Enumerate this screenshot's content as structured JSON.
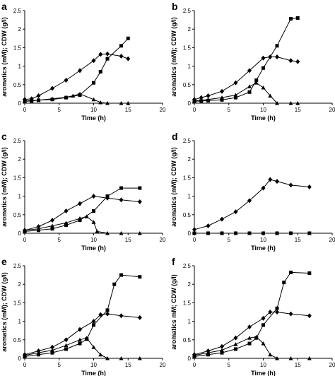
{
  "chart_data": [
    {
      "panel": "a",
      "type": "line",
      "ylabel": "aromatics (mM); CDW (g/l)",
      "xlabel": "Time (h)",
      "xlim": [
        0,
        20
      ],
      "ylim": [
        0,
        2.5
      ],
      "xticks": [
        "0",
        "5",
        "10",
        "15",
        "20"
      ],
      "yticks": [
        "0",
        "0.5",
        "1",
        "1.5",
        "2",
        "2.5"
      ],
      "series": [
        {
          "marker": "diamond",
          "x": [
            0,
            1,
            2,
            4,
            6,
            8,
            10,
            11,
            12,
            14,
            15
          ],
          "y": [
            0.1,
            0.12,
            0.2,
            0.4,
            0.62,
            0.88,
            1.15,
            1.32,
            1.33,
            1.27,
            1.2
          ]
        },
        {
          "marker": "square",
          "x": [
            0,
            1,
            2,
            4,
            6,
            8,
            10,
            11,
            12,
            14,
            15
          ],
          "y": [
            0.05,
            0.06,
            0.08,
            0.1,
            0.15,
            0.22,
            0.55,
            0.85,
            1.2,
            1.55,
            1.75
          ]
        },
        {
          "marker": "triangle",
          "x": [
            0,
            2,
            4,
            6,
            7,
            8,
            10,
            11,
            12,
            14,
            15
          ],
          "y": [
            0.06,
            0.08,
            0.12,
            0.16,
            0.2,
            0.25,
            0.1,
            0.02,
            0.0,
            0.0,
            0.0
          ]
        }
      ]
    },
    {
      "panel": "b",
      "type": "line",
      "ylabel": "aromatics (mM); CDW (g/l)",
      "xlabel": "Time (h)",
      "xlim": [
        0,
        20
      ],
      "ylim": [
        0,
        2.5
      ],
      "xticks": [
        "0",
        "5",
        "10",
        "15",
        "20"
      ],
      "yticks": [
        "0",
        "0.5",
        "1",
        "1.5",
        "2",
        "2.5"
      ],
      "series": [
        {
          "marker": "diamond",
          "x": [
            0,
            1,
            2,
            4,
            6,
            8,
            10,
            11,
            12,
            14,
            15
          ],
          "y": [
            0.1,
            0.15,
            0.2,
            0.32,
            0.55,
            0.88,
            1.22,
            1.25,
            1.25,
            1.15,
            1.12
          ]
        },
        {
          "marker": "square",
          "x": [
            0,
            1,
            2,
            4,
            6,
            8,
            9,
            10,
            12,
            14,
            15
          ],
          "y": [
            0.05,
            0.06,
            0.07,
            0.09,
            0.15,
            0.3,
            0.62,
            0.95,
            1.55,
            2.28,
            2.3
          ]
        },
        {
          "marker": "triangle",
          "x": [
            0,
            2,
            4,
            6,
            8,
            9,
            10,
            11,
            12,
            14,
            15
          ],
          "y": [
            0.06,
            0.1,
            0.15,
            0.22,
            0.45,
            0.55,
            0.42,
            0.2,
            0.0,
            0.0,
            0.0
          ]
        }
      ]
    },
    {
      "panel": "c",
      "type": "line",
      "ylabel": "aromatics (mM); CDW (g/l)",
      "xlabel": "Time (h)",
      "xlim": [
        0,
        20
      ],
      "ylim": [
        0,
        2.5
      ],
      "xticks": [
        "0",
        "5",
        "10",
        "15",
        "20"
      ],
      "yticks": [
        "0",
        "0.5",
        "1",
        "1.5",
        "2",
        "2.5"
      ],
      "series": [
        {
          "marker": "diamond",
          "x": [
            0,
            2,
            4,
            6,
            8,
            10,
            12,
            14,
            16.7
          ],
          "y": [
            0.08,
            0.18,
            0.35,
            0.6,
            0.8,
            1.0,
            0.95,
            0.9,
            0.85
          ]
        },
        {
          "marker": "square",
          "x": [
            0,
            2,
            4,
            6,
            8,
            10,
            12,
            14,
            16.7
          ],
          "y": [
            0.05,
            0.08,
            0.12,
            0.22,
            0.35,
            0.6,
            1.0,
            1.22,
            1.22
          ]
        },
        {
          "marker": "triangle",
          "x": [
            0,
            2,
            4,
            6,
            8,
            9,
            10,
            10.5,
            12,
            14,
            16.7
          ],
          "y": [
            0.08,
            0.12,
            0.2,
            0.28,
            0.4,
            0.45,
            0.3,
            0.05,
            0.0,
            0.0,
            0.0
          ]
        }
      ]
    },
    {
      "panel": "d",
      "type": "line",
      "ylabel": "aromatics (mM); CDW (g/l)",
      "xlabel": "Time (h)",
      "xlim": [
        0,
        20
      ],
      "ylim": [
        0,
        2.5
      ],
      "xticks": [
        "0",
        "5",
        "10",
        "15",
        "20"
      ],
      "yticks": [
        "0",
        "0.5",
        "1",
        "1.5",
        "2",
        "2.5"
      ],
      "series": [
        {
          "marker": "diamond",
          "x": [
            0,
            2,
            4,
            6,
            8,
            10,
            11,
            12,
            14,
            16.7
          ],
          "y": [
            0.1,
            0.2,
            0.38,
            0.58,
            0.88,
            1.22,
            1.45,
            1.4,
            1.3,
            1.25
          ]
        },
        {
          "marker": "square",
          "x": [
            0,
            2,
            4,
            6,
            8,
            10,
            12,
            14,
            16.7
          ],
          "y": [
            0.0,
            0.0,
            0.0,
            0.0,
            0.0,
            0.0,
            0.0,
            0.0,
            0.0
          ]
        },
        {
          "marker": "triangle",
          "x": [
            0,
            2,
            4,
            6,
            8,
            10,
            12,
            14,
            16.7
          ],
          "y": [
            0.0,
            0.0,
            0.0,
            0.0,
            0.0,
            0.0,
            0.0,
            0.0,
            0.0
          ]
        }
      ]
    },
    {
      "panel": "e",
      "type": "line",
      "ylabel": "aromatics (mM); CDW (g/l)",
      "xlabel": "Time (h)",
      "xlim": [
        0,
        20
      ],
      "ylim": [
        0,
        2.5
      ],
      "xticks": [
        "0",
        "5",
        "10",
        "15",
        "20"
      ],
      "yticks": [
        "0",
        "0.5",
        "1",
        "1.5",
        "2",
        "2.5"
      ],
      "series": [
        {
          "marker": "diamond",
          "x": [
            0,
            2,
            4,
            6,
            8,
            10,
            11,
            12,
            14,
            16.7
          ],
          "y": [
            0.1,
            0.2,
            0.3,
            0.5,
            0.78,
            1.0,
            1.18,
            1.2,
            1.15,
            1.1
          ]
        },
        {
          "marker": "square",
          "x": [
            0,
            2,
            4,
            6,
            8,
            9,
            10,
            12,
            13,
            14,
            16.7
          ],
          "y": [
            0.05,
            0.1,
            0.15,
            0.25,
            0.4,
            0.52,
            0.9,
            1.3,
            2.0,
            2.25,
            2.2
          ]
        },
        {
          "marker": "triangle",
          "x": [
            0,
            2,
            4,
            6,
            8,
            9,
            10,
            11,
            12,
            14,
            16.7
          ],
          "y": [
            0.08,
            0.15,
            0.22,
            0.35,
            0.5,
            0.55,
            0.3,
            0.1,
            0.0,
            0.0,
            0.0
          ]
        }
      ]
    },
    {
      "panel": "f",
      "type": "line",
      "ylabel": "aromatics mM; CDW (g/l)",
      "xlabel": "Time (h)",
      "xlim": [
        0,
        20
      ],
      "ylim": [
        0,
        2.5
      ],
      "xticks": [
        "0",
        "5",
        "10",
        "15",
        "20"
      ],
      "yticks": [
        "0",
        "0.5",
        "1",
        "1.5",
        "2",
        "2.5"
      ],
      "series": [
        {
          "marker": "diamond",
          "x": [
            0,
            2,
            4,
            6,
            8,
            10,
            11,
            12,
            14,
            16.7
          ],
          "y": [
            0.1,
            0.2,
            0.32,
            0.55,
            0.85,
            1.08,
            1.25,
            1.25,
            1.2,
            1.15
          ]
        },
        {
          "marker": "square",
          "x": [
            0,
            2,
            4,
            6,
            8,
            9,
            10,
            12,
            13,
            14,
            16.7
          ],
          "y": [
            0.05,
            0.1,
            0.15,
            0.25,
            0.4,
            0.55,
            0.9,
            1.35,
            2.05,
            2.32,
            2.3
          ]
        },
        {
          "marker": "triangle",
          "x": [
            0,
            2,
            4,
            6,
            8,
            9,
            10,
            11,
            12,
            14,
            16.7
          ],
          "y": [
            0.08,
            0.15,
            0.22,
            0.38,
            0.55,
            0.58,
            0.4,
            0.1,
            0.0,
            0.0,
            0.0
          ]
        }
      ]
    }
  ]
}
